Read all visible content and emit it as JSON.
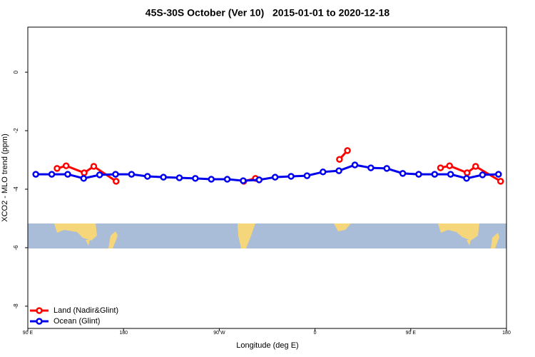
{
  "chart_data": {
    "type": "line",
    "title": "45S-30S October (Ver 10)   2015-01-01 to 2020-12-18",
    "xlabel": "Longitude (deg E)",
    "ylabel": "XCO2 - MLO trend (ppm)",
    "xlim": [
      90,
      540
    ],
    "ylim": [
      -8.76,
      1.54
    ],
    "xticks": [
      {
        "value": 90,
        "label": "90 E"
      },
      {
        "value": 180,
        "label": "180"
      },
      {
        "value": 270,
        "label": "90 W"
      },
      {
        "value": 360,
        "label": "0"
      },
      {
        "value": 450,
        "label": "90 E"
      },
      {
        "value": 540,
        "label": "180"
      }
    ],
    "yticks": [
      0,
      -2,
      -4,
      -6,
      -8
    ],
    "legend": "bottomleft",
    "series": [
      {
        "name": "Land (Nadir&Glint)",
        "color": "#ff0000",
        "x": [
          117.5,
          126,
          143,
          152,
          173,
          null,
          293,
          304,
          null,
          383,
          390.5,
          null,
          478,
          486.5,
          503,
          511,
          534.5
        ],
        "values": [
          -3.29,
          -3.2,
          -3.44,
          -3.22,
          -3.73,
          null,
          -3.73,
          -3.63,
          null,
          -2.98,
          -2.68,
          null,
          -3.27,
          -3.2,
          -3.44,
          -3.22,
          -3.73
        ]
      },
      {
        "name": "Ocean (Glint)",
        "color": "#0000ee",
        "x": [
          97.5,
          112.5,
          127.5,
          142.5,
          157.5,
          172.5,
          187.5,
          202.5,
          217.5,
          232.5,
          247.5,
          262.5,
          277.5,
          292.5,
          307.5,
          322.5,
          337.5,
          352.5,
          367.5,
          382.5,
          397.5,
          412.5,
          427.5,
          442.5,
          457.5,
          472.5,
          487.5,
          502.5,
          517.5,
          532.5
        ],
        "values": [
          -3.49,
          -3.49,
          -3.49,
          -3.63,
          -3.51,
          -3.49,
          -3.49,
          -3.56,
          -3.59,
          -3.61,
          -3.63,
          -3.66,
          -3.66,
          -3.71,
          -3.68,
          -3.59,
          -3.56,
          -3.54,
          -3.41,
          -3.37,
          -3.17,
          -3.27,
          -3.29,
          -3.46,
          -3.49,
          -3.49,
          -3.49,
          -3.63,
          -3.51,
          -3.49
        ]
      }
    ]
  }
}
